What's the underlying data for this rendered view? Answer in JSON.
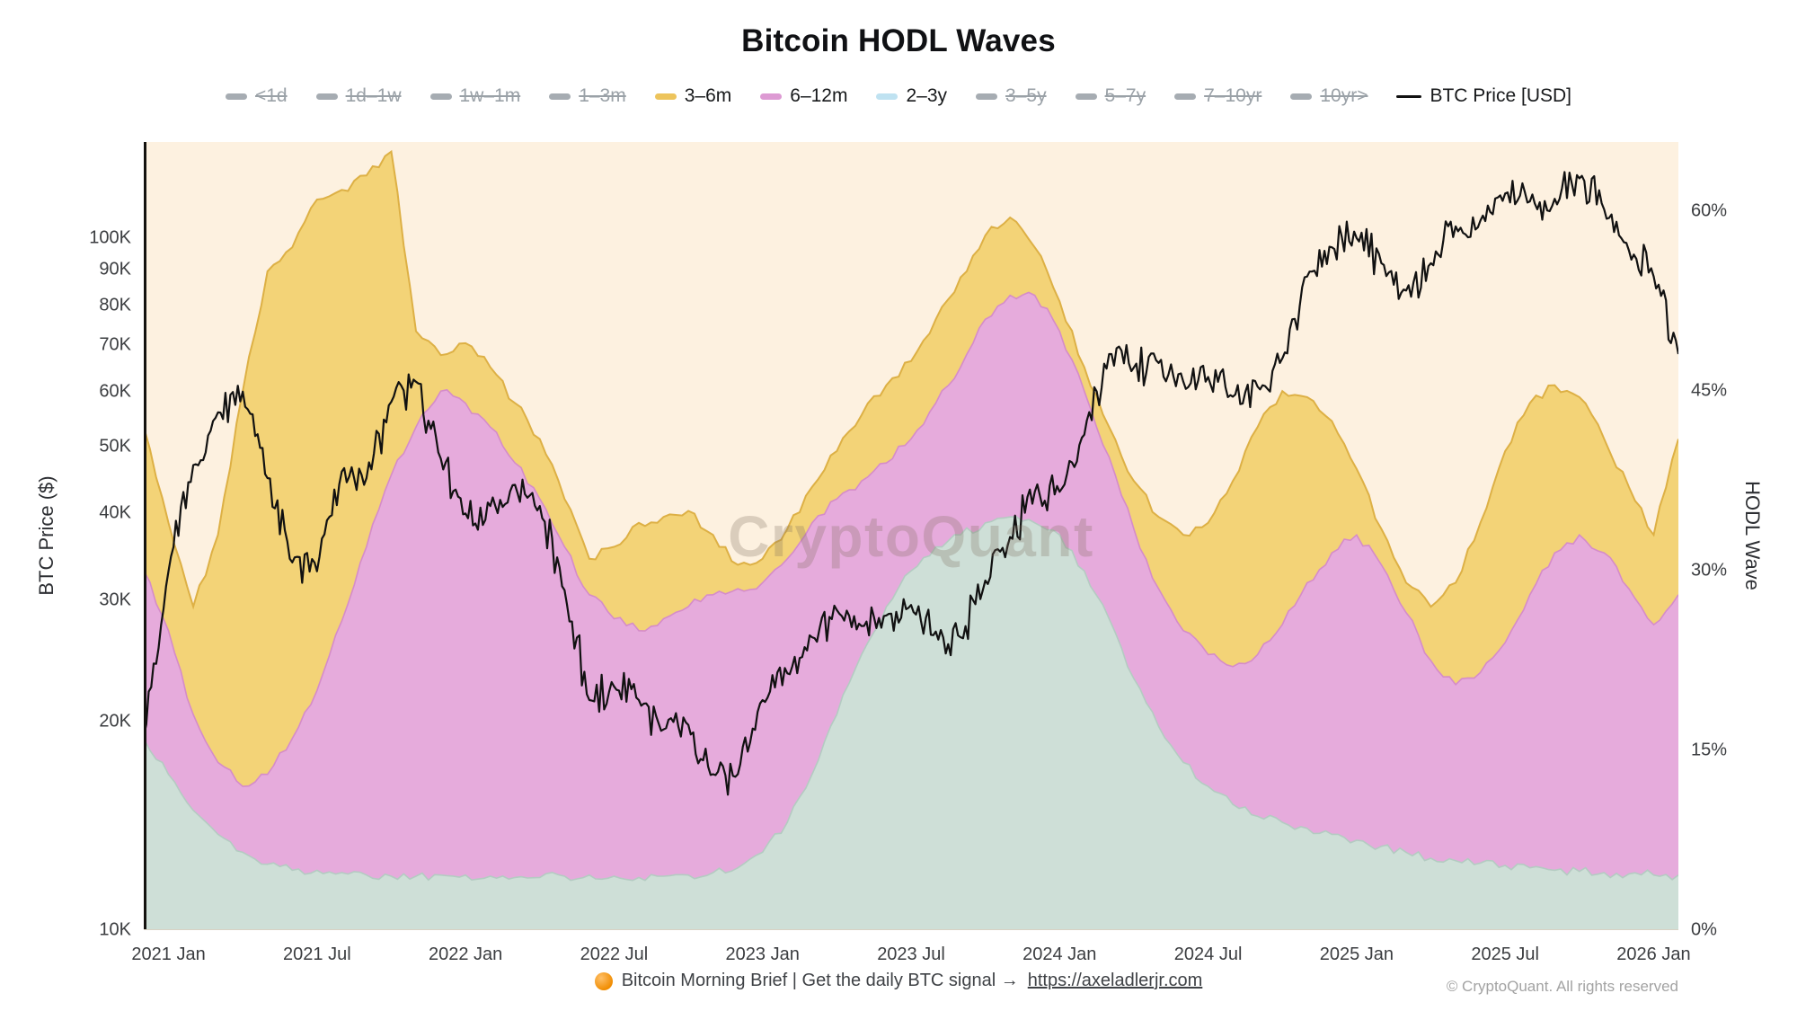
{
  "title": "Bitcoin HODL Waves",
  "watermark": "CryptoQuant",
  "copyright": "© CryptoQuant. All rights reserved",
  "footer": {
    "bullet_icon": "orange-circle",
    "text": "Bitcoin Morning Brief | Get the daily BTC signal →",
    "link_text": "https://axeladlerjr.com"
  },
  "legend": {
    "disabled_color": "#a6acb2",
    "items": [
      {
        "label": "<1d",
        "enabled": false
      },
      {
        "label": "1d–1w",
        "enabled": false
      },
      {
        "label": "1w–1m",
        "enabled": false
      },
      {
        "label": "1–3m",
        "enabled": false
      },
      {
        "label": "3–6m",
        "enabled": true,
        "color": "#edc45c"
      },
      {
        "label": "6–12m",
        "enabled": true,
        "color": "#dd9ad3"
      },
      {
        "label": "2–3y",
        "enabled": true,
        "color": "#bfe2f1"
      },
      {
        "label": "3–5y",
        "enabled": false
      },
      {
        "label": "5–7y",
        "enabled": false
      },
      {
        "label": "7–10yr",
        "enabled": false
      },
      {
        "label": "10yr>",
        "enabled": false
      },
      {
        "label": "BTC Price [USD]",
        "enabled": true,
        "color": "#111111",
        "type": "line"
      }
    ]
  },
  "axes": {
    "left_title": "BTC Price ($)",
    "right_title": "HODL Wave",
    "price_ticks": [
      {
        "label": "10K",
        "value": 10
      },
      {
        "label": "20K",
        "value": 20
      },
      {
        "label": "30K",
        "value": 30
      },
      {
        "label": "40K",
        "value": 40
      },
      {
        "label": "50K",
        "value": 50
      },
      {
        "label": "60K",
        "value": 60
      },
      {
        "label": "70K",
        "value": 70
      },
      {
        "label": "80K",
        "value": 80
      },
      {
        "label": "90K",
        "value": 90
      },
      {
        "label": "100K",
        "value": 100
      }
    ],
    "hodl_ticks": [
      {
        "label": "0%",
        "value": 0
      },
      {
        "label": "15%",
        "value": 15
      },
      {
        "label": "30%",
        "value": 30
      },
      {
        "label": "45%",
        "value": 45
      },
      {
        "label": "60%",
        "value": 60
      }
    ],
    "x_ticks": [
      {
        "label": "2021 Jan",
        "month_index": 1
      },
      {
        "label": "2021 Jul",
        "month_index": 7
      },
      {
        "label": "2022 Jan",
        "month_index": 13
      },
      {
        "label": "2022 Jul",
        "month_index": 19
      },
      {
        "label": "2023 Jan",
        "month_index": 25
      },
      {
        "label": "2023 Jul",
        "month_index": 31
      },
      {
        "label": "2024 Jan",
        "month_index": 37
      },
      {
        "label": "2024 Jul",
        "month_index": 43
      },
      {
        "label": "2025 Jan",
        "month_index": 49
      },
      {
        "label": "2025 Jul",
        "month_index": 55
      },
      {
        "label": "2026 Jan",
        "month_index": 61
      }
    ]
  },
  "chart_data": {
    "type": "area",
    "stacked": true,
    "title": "Bitcoin HODL Waves",
    "plot_bg": "#fdf1e0",
    "hodl_axis": {
      "min": 0,
      "max": 65.8,
      "unit": "%",
      "ticks": [
        0,
        15,
        30,
        45,
        60
      ],
      "position": "right"
    },
    "price_axis": {
      "min_k": 10,
      "max_k": 137.7,
      "scale": "log",
      "ticks_k": [
        10,
        20,
        30,
        40,
        50,
        60,
        70,
        80,
        90,
        100
      ],
      "position": "left"
    },
    "x_monthly": [
      "2020-12",
      "2021-01",
      "2021-02",
      "2021-03",
      "2021-04",
      "2021-05",
      "2021-06",
      "2021-07",
      "2021-08",
      "2021-09",
      "2021-10",
      "2021-11",
      "2021-12",
      "2022-01",
      "2022-02",
      "2022-03",
      "2022-04",
      "2022-05",
      "2022-06",
      "2022-07",
      "2022-08",
      "2022-09",
      "2022-10",
      "2022-11",
      "2022-12",
      "2023-01",
      "2023-02",
      "2023-03",
      "2023-04",
      "2023-05",
      "2023-06",
      "2023-07",
      "2023-08",
      "2023-09",
      "2023-10",
      "2023-11",
      "2023-12",
      "2024-01",
      "2024-02",
      "2024-03",
      "2024-04",
      "2024-05",
      "2024-06",
      "2024-07",
      "2024-08",
      "2024-09",
      "2024-10",
      "2024-11",
      "2024-12",
      "2025-01",
      "2025-02",
      "2025-03",
      "2025-04",
      "2025-05",
      "2025-06",
      "2025-07",
      "2025-08",
      "2025-09",
      "2025-10",
      "2025-11",
      "2025-12",
      "2026-01",
      "2026-02"
    ],
    "series": [
      {
        "name": "2–3y",
        "unit": "% of supply",
        "fill": "#cedfd7",
        "stroke": "#b4cbc2",
        "values": [
          16,
          13,
          10,
          8,
          6.5,
          5.5,
          5,
          5,
          4.8,
          4.6,
          4.5,
          4.5,
          4.6,
          4.6,
          4.5,
          4.4,
          4.4,
          4.5,
          4.6,
          4.5,
          4.4,
          4.5,
          4.6,
          4.8,
          5.2,
          6.5,
          9,
          13,
          18,
          23,
          27,
          30,
          32,
          33,
          34,
          34.5,
          34,
          33,
          30,
          26,
          21,
          17,
          14,
          12,
          10.5,
          9.5,
          9,
          8.5,
          8,
          7.5,
          7,
          6.5,
          6,
          5.8,
          5.6,
          5.4,
          5.2,
          5,
          4.9,
          4.8,
          4.7,
          4.6,
          4.6
        ]
      },
      {
        "name": "6–12m",
        "unit": "% of supply",
        "fill": "#e6abdc",
        "stroke": "#d58cc9",
        "values": [
          14,
          12,
          8,
          6,
          5.5,
          7.5,
          11,
          15,
          21,
          27.4,
          33.5,
          37.5,
          40.4,
          39.4,
          37.5,
          34.6,
          31.6,
          27.5,
          23.4,
          21.5,
          20.6,
          21.5,
          22.4,
          23.2,
          23.3,
          22.5,
          22,
          21,
          18,
          14.5,
          12,
          11,
          12,
          14,
          17,
          18.5,
          19,
          17,
          15,
          13.5,
          12.5,
          11.5,
          11,
          11,
          11.5,
          13.5,
          16.5,
          20.5,
          23.5,
          25.5,
          23.5,
          20,
          16.5,
          14.7,
          15.9,
          18.6,
          22.8,
          26.5,
          28.1,
          26.7,
          23.8,
          20.9,
          23.4
        ]
      },
      {
        "name": "3–6m",
        "unit": "% of supply",
        "fill": "#f3d377",
        "stroke": "#ddb045",
        "values": [
          12,
          9,
          9,
          19,
          33,
          42,
          41,
          41,
          36,
          31,
          27,
          8,
          3,
          5,
          5,
          5,
          5,
          4,
          3,
          6,
          9,
          8.5,
          8,
          5,
          2,
          2,
          2.5,
          3,
          4,
          5.5,
          6.5,
          6.5,
          7,
          7.5,
          7,
          6.5,
          4,
          2.5,
          2,
          2.5,
          4,
          6,
          8,
          11,
          15.5,
          19,
          19.5,
          15.5,
          11,
          5.5,
          3,
          2.5,
          4.5,
          8.5,
          12.5,
          16,
          16,
          14,
          11.5,
          9.5,
          8.5,
          7.5,
          13
        ]
      }
    ],
    "price": {
      "name": "BTC Price [USD]",
      "unit": "thousand USD",
      "color": "#111111",
      "values": [
        19,
        33,
        47,
        56,
        60,
        45,
        34,
        33,
        46,
        45,
        58,
        62,
        48,
        40,
        41,
        44,
        41,
        31,
        21.5,
        22.5,
        21.5,
        19.5,
        19.8,
        16.8,
        16.8,
        21.5,
        23.5,
        26.5,
        29,
        27.5,
        28.5,
        29.5,
        27,
        26.5,
        32,
        37,
        43,
        43,
        52,
        68,
        65,
        66,
        62,
        63,
        59,
        61,
        67,
        88,
        97,
        100,
        92,
        84,
        92,
        104,
        106,
        116,
        113,
        114,
        122,
        110,
        96,
        88,
        68
      ]
    }
  }
}
